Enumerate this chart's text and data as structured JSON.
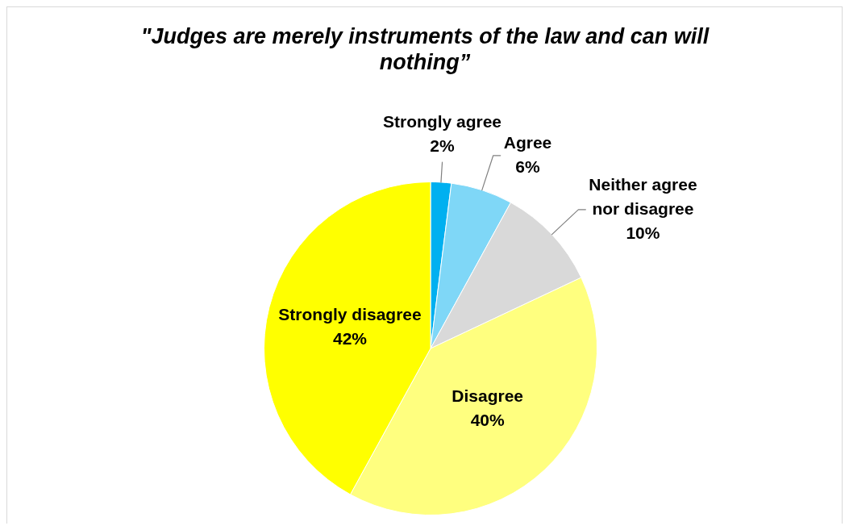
{
  "chart_data": {
    "type": "pie",
    "title": "\"Judges are merely instruments of the law and can will nothing”",
    "categories": [
      "Strongly agree",
      "Agree",
      "Neither agree nor disagree",
      "Disagree",
      "Strongly disagree"
    ],
    "values": [
      2,
      6,
      10,
      40,
      42
    ],
    "colors": [
      "#00b0f0",
      "#7fd7f7",
      "#d9d9d9",
      "#ffff7f",
      "#ffff00"
    ],
    "value_labels": [
      "2%",
      "6%",
      "10%",
      "40%",
      "42%"
    ]
  }
}
